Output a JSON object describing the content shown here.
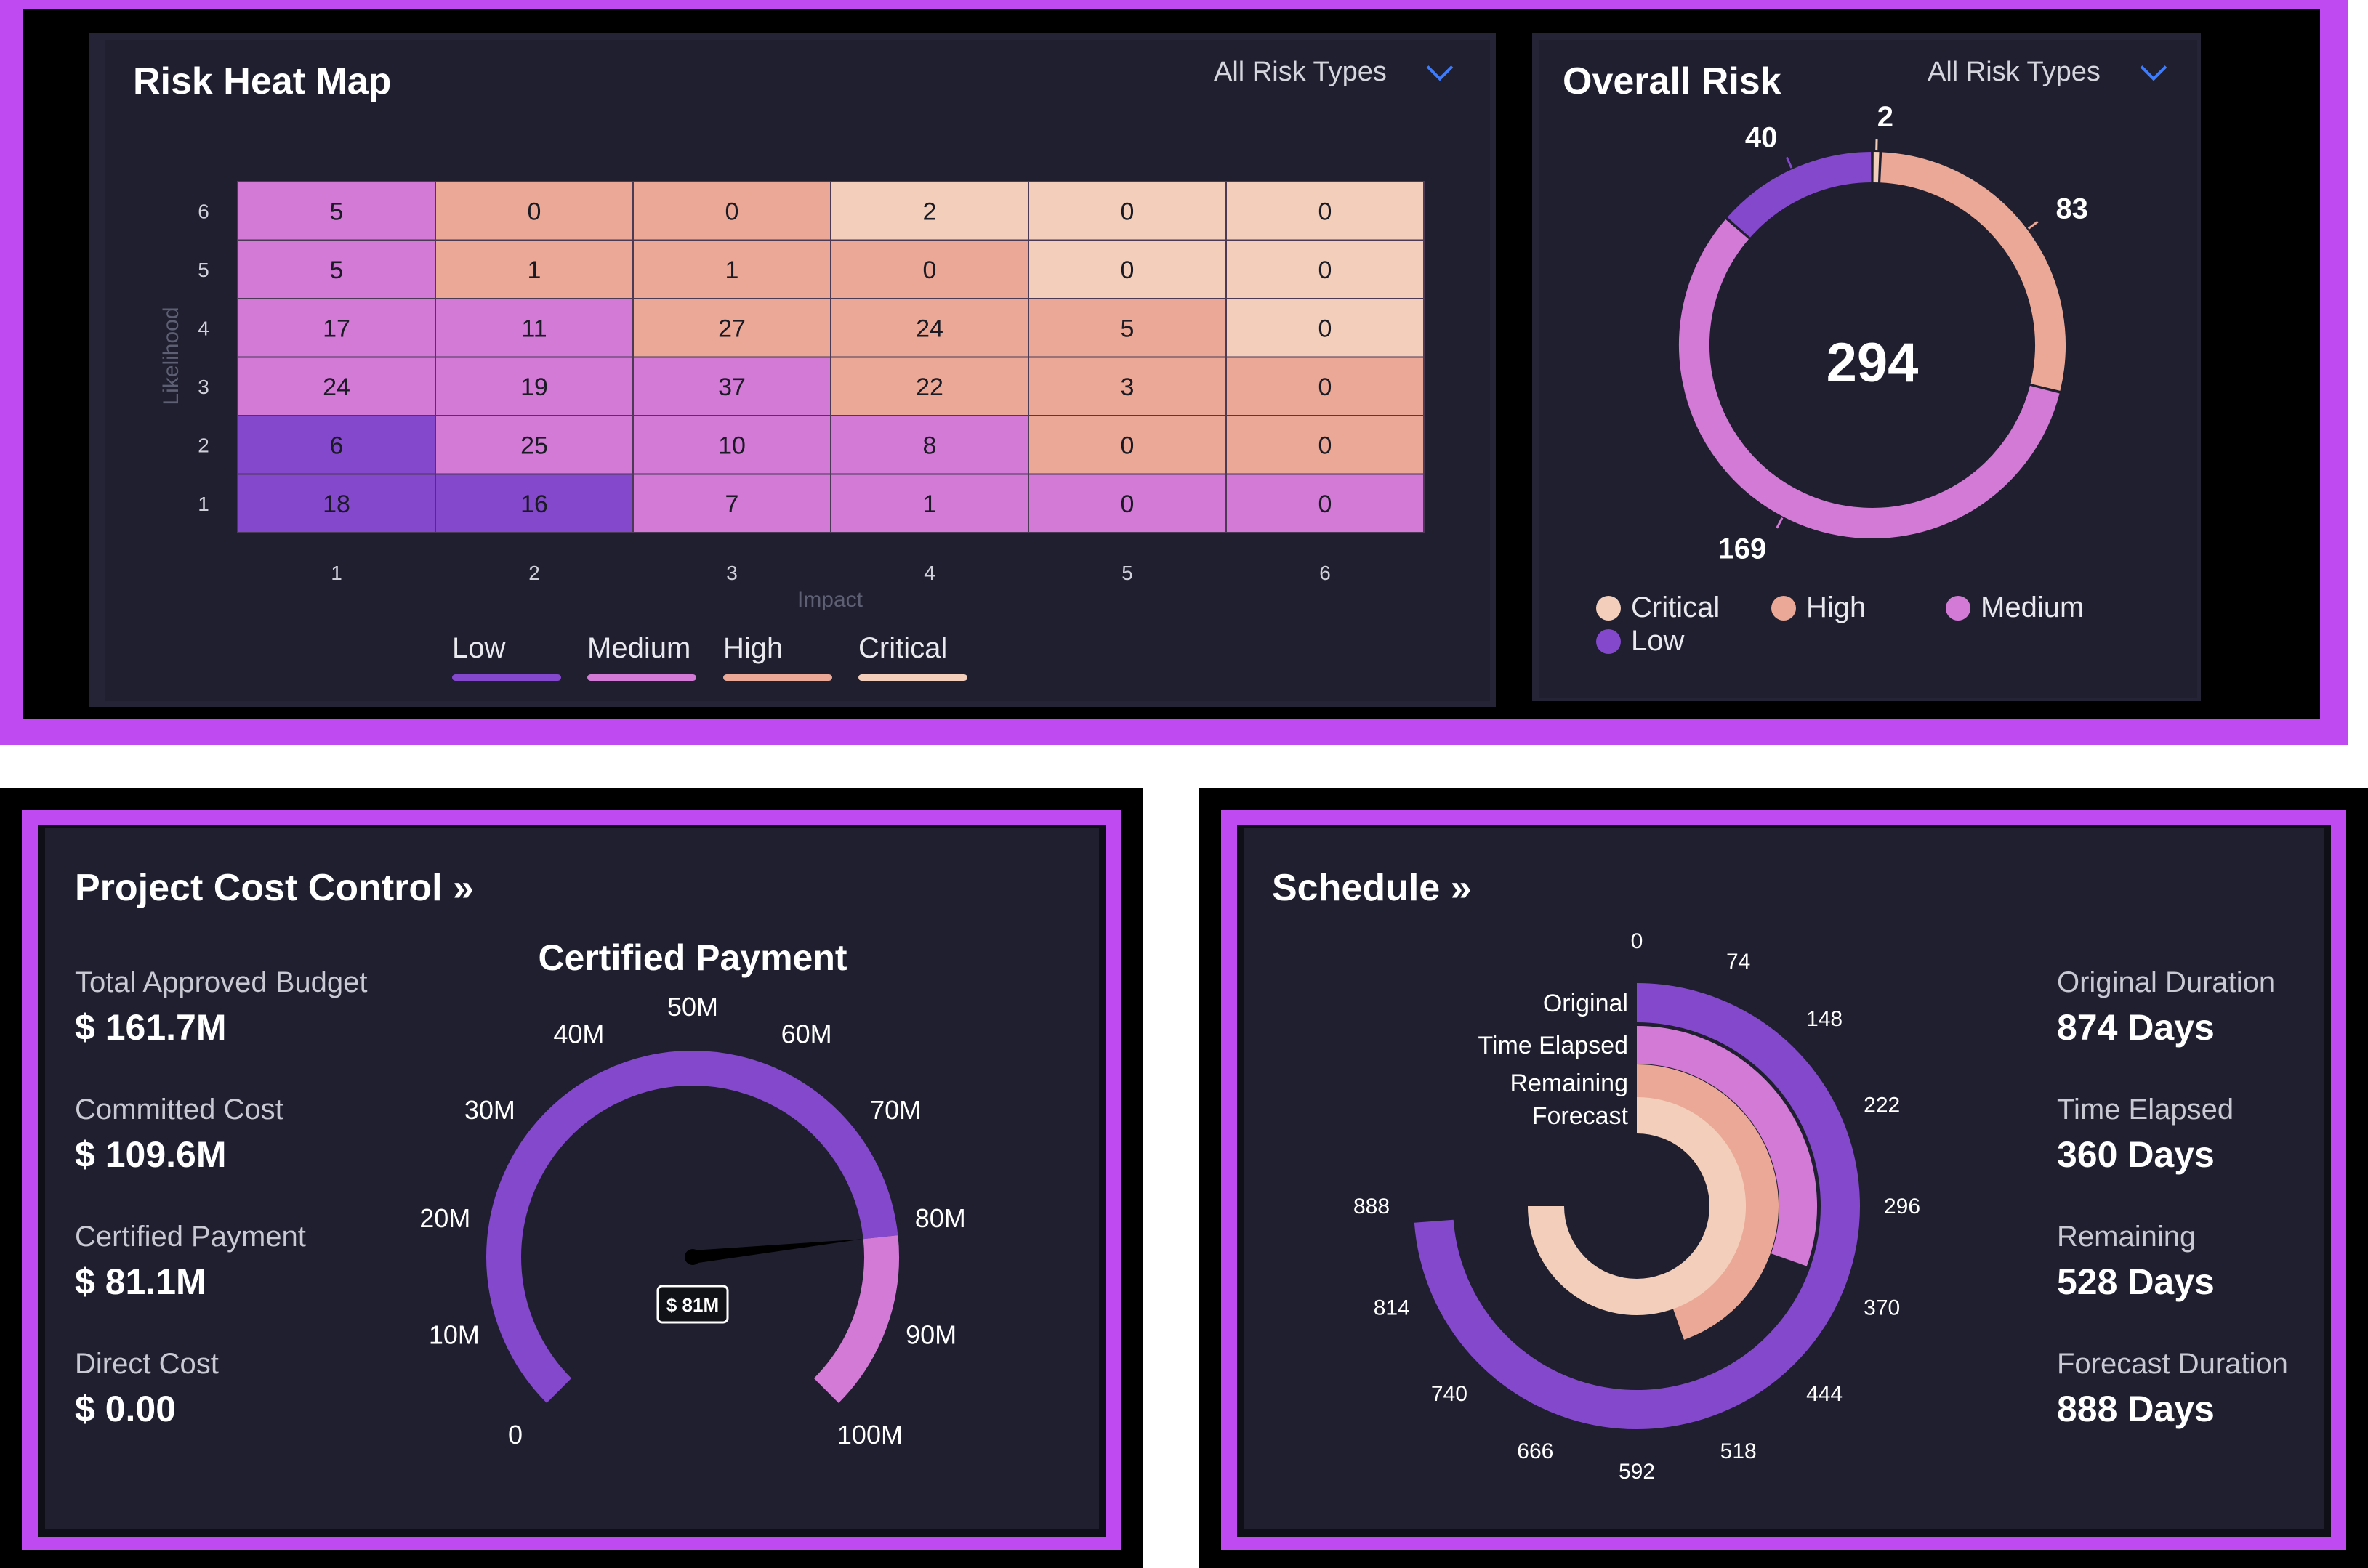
{
  "colors": {
    "low": "#8448cc",
    "medium": "#d27ad6",
    "high": "#eba896",
    "critical": "#f3cfbb"
  },
  "heatmap": {
    "title": "Risk Heat Map",
    "dropdown": "All Risk Types",
    "y_axis_label": "Likelihood",
    "x_axis_label": "Impact",
    "legend": [
      "Low",
      "Medium",
      "High",
      "Critical"
    ]
  },
  "overall": {
    "title": "Overall Risk",
    "dropdown": "All Risk Types",
    "total": "294",
    "legend": [
      "Critical",
      "High",
      "Medium",
      "Low"
    ]
  },
  "cost": {
    "title": "Project Cost Control",
    "gauge_title": "Certified Payment",
    "gauge_value_label": "$ 81M",
    "stats": [
      {
        "label": "Total Approved Budget",
        "value": "$ 161.7M"
      },
      {
        "label": "Committed Cost",
        "value": "$ 109.6M"
      },
      {
        "label": "Certified Payment",
        "value": "$ 81.1M"
      },
      {
        "label": "Direct Cost",
        "value": "$ 0.00"
      }
    ]
  },
  "schedule": {
    "title": "Schedule",
    "stats": [
      {
        "label": "Original Duration",
        "value": "874 Days"
      },
      {
        "label": "Time Elapsed",
        "value": "360 Days"
      },
      {
        "label": "Remaining",
        "value": "528 Days"
      },
      {
        "label": "Forecast Duration",
        "value": "888 Days"
      }
    ]
  },
  "chart_data": [
    {
      "type": "heatmap",
      "title": "Risk Heat Map",
      "xlabel": "Impact",
      "ylabel": "Likelihood",
      "x_ticks": [
        "1",
        "2",
        "3",
        "4",
        "5",
        "6"
      ],
      "y_ticks": [
        "6",
        "5",
        "4",
        "3",
        "2",
        "1"
      ],
      "values": [
        [
          5,
          0,
          0,
          2,
          0,
          0
        ],
        [
          5,
          1,
          1,
          0,
          0,
          0
        ],
        [
          17,
          11,
          27,
          24,
          5,
          0
        ],
        [
          24,
          19,
          37,
          22,
          3,
          0
        ],
        [
          6,
          25,
          10,
          8,
          0,
          0
        ],
        [
          18,
          16,
          7,
          1,
          0,
          0
        ]
      ],
      "levels": [
        [
          "medium",
          "high",
          "high",
          "critical",
          "critical",
          "critical"
        ],
        [
          "medium",
          "high",
          "high",
          "high",
          "critical",
          "critical"
        ],
        [
          "medium",
          "medium",
          "high",
          "high",
          "high",
          "critical"
        ],
        [
          "medium",
          "medium",
          "medium",
          "high",
          "high",
          "high"
        ],
        [
          "low",
          "medium",
          "medium",
          "medium",
          "high",
          "high"
        ],
        [
          "low",
          "low",
          "medium",
          "medium",
          "medium",
          "medium"
        ]
      ],
      "legend": [
        "Low",
        "Medium",
        "High",
        "Critical"
      ],
      "legend_placement": "bottom"
    },
    {
      "type": "pie",
      "title": "Overall Risk",
      "total": "294",
      "slices": [
        {
          "name": "Critical",
          "value": 2,
          "label": "2"
        },
        {
          "name": "High",
          "value": 83,
          "label": "83"
        },
        {
          "name": "Medium",
          "value": 169,
          "label": "169"
        },
        {
          "name": "Low",
          "value": 40,
          "label": "40"
        }
      ],
      "legend": [
        "Critical",
        "High",
        "Medium",
        "Low"
      ],
      "legend_placement": "bottom"
    },
    {
      "type": "gauge",
      "title": "Certified Payment",
      "min": 0,
      "max": 100,
      "unit": "M",
      "value": 81.1,
      "value_label": "$ 81M",
      "ticks": [
        "0",
        "10M",
        "20M",
        "30M",
        "40M",
        "50M",
        "60M",
        "70M",
        "80M",
        "90M",
        "100M"
      ],
      "tick_values": [
        0,
        10,
        20,
        30,
        40,
        50,
        60,
        70,
        80,
        90,
        100
      ]
    },
    {
      "type": "radial_bar",
      "title": "Schedule",
      "max": 888,
      "ticks": [
        "0",
        "74",
        "148",
        "222",
        "296",
        "370",
        "444",
        "518",
        "592",
        "666",
        "740",
        "814",
        "888"
      ],
      "tick_values": [
        0,
        74,
        148,
        222,
        296,
        370,
        444,
        518,
        592,
        666,
        740,
        814,
        888
      ],
      "series": [
        {
          "name": "Original",
          "value": 874
        },
        {
          "name": "Time Elapsed",
          "value": 360
        },
        {
          "name": "Remaining",
          "value": 528
        },
        {
          "name": "Forecast",
          "value": 888
        }
      ]
    }
  ]
}
